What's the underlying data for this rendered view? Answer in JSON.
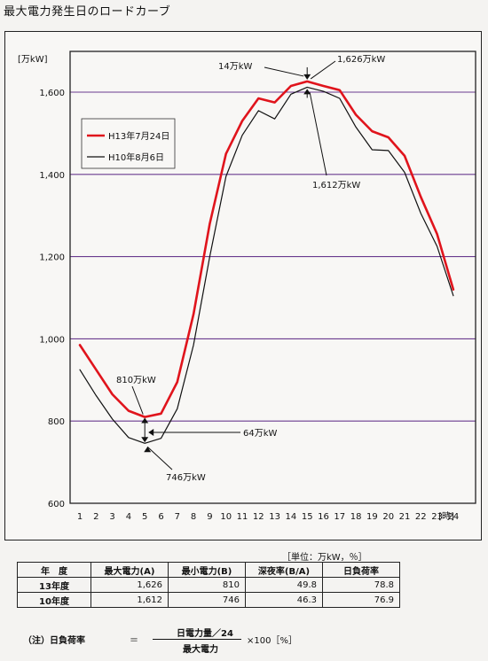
{
  "page": {
    "title": "最大電力発生日のロードカーブ"
  },
  "chart_data": {
    "type": "line",
    "title": "最大電力発生日のロードカーブ",
    "ylabel": "[万kW]",
    "xlabel": "[時]",
    "ylim": [
      600,
      1700
    ],
    "yticks": [
      600,
      800,
      1000,
      1200,
      1400,
      1600
    ],
    "ytick_labels": [
      "600",
      "800",
      "1,000",
      "1,200",
      "1,400",
      "1,600"
    ],
    "x": [
      1,
      2,
      3,
      4,
      5,
      6,
      7,
      8,
      9,
      10,
      11,
      12,
      13,
      14,
      15,
      16,
      17,
      18,
      19,
      20,
      21,
      22,
      23,
      24
    ],
    "grid": true,
    "gridline_color": "#6a3b8f",
    "legend_position": "upper-left",
    "series": [
      {
        "name": "H13年7月24日",
        "color": "#e0141c",
        "stroke_width": 2.6,
        "values": [
          985,
          925,
          865,
          825,
          810,
          818,
          895,
          1060,
          1280,
          1450,
          1530,
          1585,
          1575,
          1615,
          1626,
          1615,
          1605,
          1545,
          1505,
          1490,
          1445,
          1345,
          1255,
          1120
        ]
      },
      {
        "name": "H10年8月6日",
        "color": "#111111",
        "stroke_width": 1.2,
        "values": [
          925,
          862,
          805,
          760,
          746,
          758,
          830,
          985,
          1200,
          1395,
          1495,
          1555,
          1535,
          1595,
          1612,
          1602,
          1585,
          1515,
          1460,
          1458,
          1405,
          1305,
          1225,
          1105
        ]
      }
    ],
    "annotations": {
      "diff_peak": "14万kW",
      "peak_h13": "1,626万kW",
      "peak_h10": "1,612万kW",
      "min_h13": "810万kW",
      "diff_min": "64万kW",
      "min_h10": "746万kW"
    }
  },
  "table": {
    "unit_note": "［単位：万kW，％］",
    "headers": [
      "年　度",
      "最大電力(A)",
      "最小電力(B)",
      "深夜率(B/A)",
      "日負荷率"
    ],
    "rows": [
      [
        "13年度",
        "1,626",
        "810",
        "49.8",
        "78.8"
      ],
      [
        "10年度",
        "1,612",
        "746",
        "46.3",
        "76.9"
      ]
    ]
  },
  "note": {
    "label": "（注）日負荷率",
    "equals": "＝",
    "numerator": "日電力量／24",
    "denominator": "最大電力",
    "multiplier": "×100［%］"
  }
}
